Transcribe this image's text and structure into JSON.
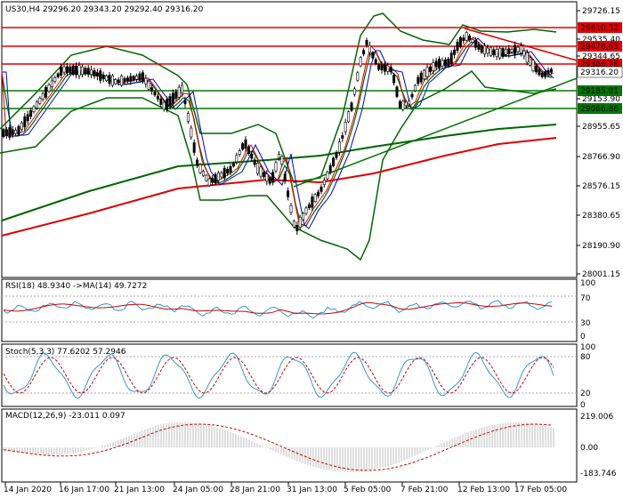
{
  "main": {
    "symbol": "US30,H4",
    "ohlc": "29296.20 29343.20 29292.40 29316.20",
    "price_axis": [
      "29726.15",
      "29535.40",
      "29344.65",
      "29153.90",
      "28955.65",
      "28766.90",
      "28576.15",
      "28380.65",
      "28190.90",
      "28001.15"
    ],
    "levels": [
      {
        "label": "29610.32",
        "color": "#dd0000"
      },
      {
        "label": "29478.63",
        "color": "#dd0000"
      },
      {
        "label": "29366.78",
        "color": "#dd0000"
      },
      {
        "label": "29185.01",
        "color": "#007700"
      },
      {
        "label": "29066.86",
        "color": "#007700"
      }
    ],
    "current_price": "29316.20"
  },
  "rsi": {
    "title": "RSI(18) 48.9340  ->MA(14) 49.7272",
    "axis": [
      "100",
      "70",
      "30",
      "0"
    ]
  },
  "stoch": {
    "title": "Stoch(5,3,3) 77.6202 57.2946",
    "axis": [
      "100",
      "80",
      "20",
      "0"
    ]
  },
  "macd": {
    "title": "MACD(12,26,9) -23.011 0.097",
    "axis": [
      "219.006",
      "0.00",
      "-183.746"
    ]
  },
  "time_axis": [
    "14 Jan 2020",
    "16 Jan 17:00",
    "21 Jan 13:00",
    "24 Jan 05:00",
    "28 Jan 21:00",
    "31 Jan 13:00",
    "5 Feb 05:00",
    "7 Feb 21:00",
    "12 Feb 13:00",
    "17 Feb 05:00"
  ],
  "colors": {
    "bull": "#ffffff",
    "candle": "#000000",
    "bands": "#006600",
    "ma_red": "#dd0000",
    "ma_blue": "#0000cc",
    "level_red": "#dd0000",
    "level_green": "#007700"
  }
}
